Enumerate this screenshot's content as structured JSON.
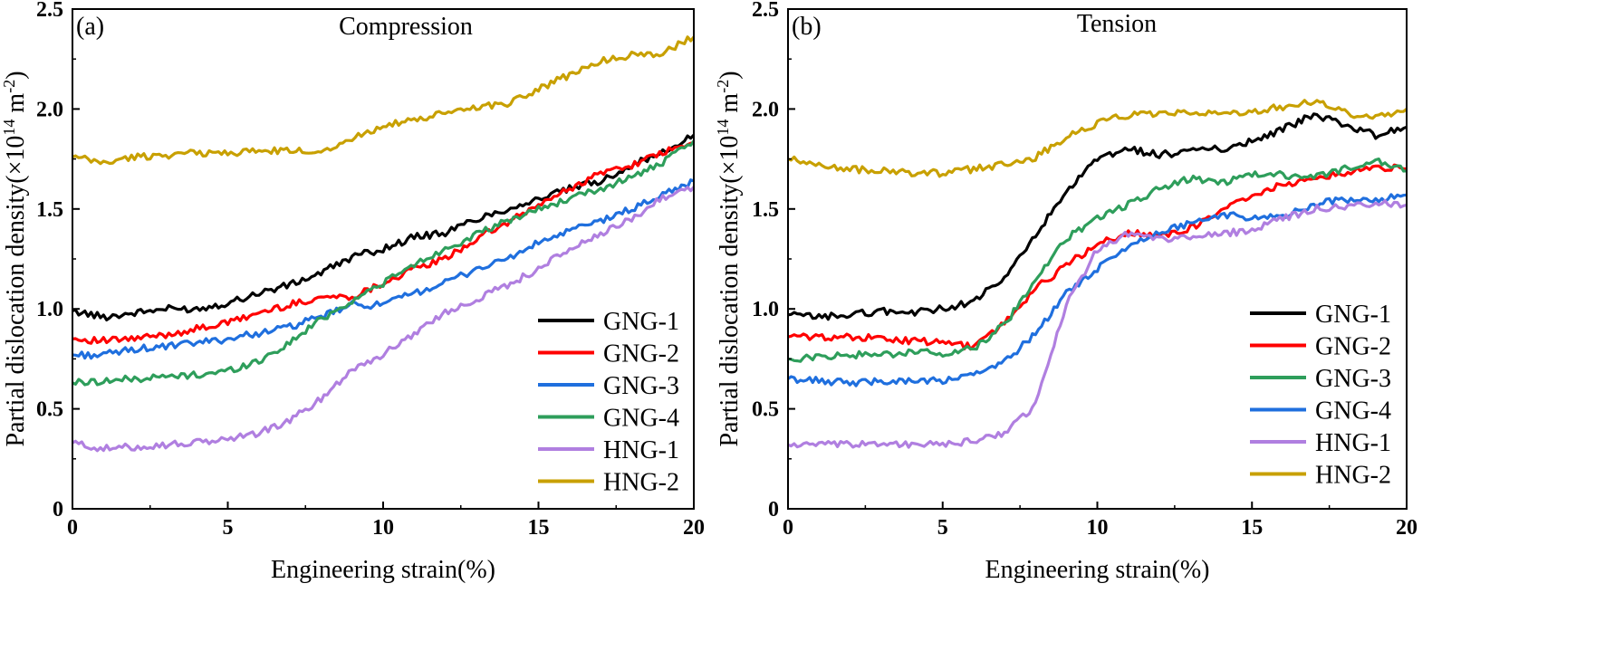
{
  "figure": {
    "panels": [
      {
        "tag": "(a)",
        "title": "Compression"
      },
      {
        "tag": "(b)",
        "title": "Tension"
      }
    ]
  },
  "chart_data": [
    {
      "type": "line",
      "title": "Compression",
      "panel_label": "(a)",
      "xlabel": "Engineering strain(%)",
      "ylabel_prefix": "Partial dislocation density(×10",
      "ylabel_exp1": "14",
      "ylabel_mid": " m",
      "ylabel_exp2": "-2",
      "ylabel_suffix": ")",
      "xlim": [
        0,
        20
      ],
      "ylim": [
        0,
        2.5
      ],
      "xticks": [
        "0",
        "5",
        "10",
        "15",
        "20"
      ],
      "yticks": [
        "0",
        "0.5",
        "1.0",
        "1.5",
        "2.0",
        "2.5"
      ],
      "legend_position": "lower-right",
      "series": [
        {
          "name": "GNG-1",
          "color": "#000000",
          "points": [
            [
              0,
              0.99
            ],
            [
              1,
              0.96
            ],
            [
              2,
              0.98
            ],
            [
              3,
              1.0
            ],
            [
              4,
              1.0
            ],
            [
              5,
              1.03
            ],
            [
              6,
              1.08
            ],
            [
              7,
              1.12
            ],
            [
              8,
              1.18
            ],
            [
              9,
              1.26
            ],
            [
              10,
              1.3
            ],
            [
              11,
              1.36
            ],
            [
              12,
              1.38
            ],
            [
              13,
              1.45
            ],
            [
              14,
              1.5
            ],
            [
              15,
              1.55
            ],
            [
              16,
              1.6
            ],
            [
              17,
              1.64
            ],
            [
              18,
              1.72
            ],
            [
              19,
              1.78
            ],
            [
              20,
              1.87
            ]
          ]
        },
        {
          "name": "GNG-2",
          "color": "#ff0000",
          "points": [
            [
              0,
              0.85
            ],
            [
              1,
              0.84
            ],
            [
              2,
              0.85
            ],
            [
              3,
              0.87
            ],
            [
              4,
              0.9
            ],
            [
              5,
              0.93
            ],
            [
              6,
              0.98
            ],
            [
              7,
              1.02
            ],
            [
              8,
              1.06
            ],
            [
              9,
              1.06
            ],
            [
              10,
              1.13
            ],
            [
              11,
              1.2
            ],
            [
              12,
              1.25
            ],
            [
              13,
              1.35
            ],
            [
              14,
              1.43
            ],
            [
              15,
              1.52
            ],
            [
              16,
              1.6
            ],
            [
              17,
              1.68
            ],
            [
              18,
              1.72
            ],
            [
              19,
              1.78
            ],
            [
              20,
              1.83
            ]
          ]
        },
        {
          "name": "GNG-3",
          "color": "#1f6fde",
          "points": [
            [
              0,
              0.77
            ],
            [
              1,
              0.77
            ],
            [
              2,
              0.8
            ],
            [
              3,
              0.81
            ],
            [
              4,
              0.83
            ],
            [
              5,
              0.85
            ],
            [
              6,
              0.88
            ],
            [
              7,
              0.91
            ],
            [
              8,
              0.96
            ],
            [
              9,
              1.02
            ],
            [
              10,
              1.02
            ],
            [
              11,
              1.08
            ],
            [
              12,
              1.13
            ],
            [
              13,
              1.2
            ],
            [
              14,
              1.25
            ],
            [
              15,
              1.33
            ],
            [
              16,
              1.39
            ],
            [
              17,
              1.44
            ],
            [
              18,
              1.5
            ],
            [
              19,
              1.57
            ],
            [
              20,
              1.64
            ]
          ]
        },
        {
          "name": "GNG-4",
          "color": "#2e9e5b",
          "points": [
            [
              0,
              0.63
            ],
            [
              1,
              0.64
            ],
            [
              2,
              0.65
            ],
            [
              3,
              0.66
            ],
            [
              4,
              0.67
            ],
            [
              5,
              0.69
            ],
            [
              6,
              0.74
            ],
            [
              7,
              0.83
            ],
            [
              8,
              0.95
            ],
            [
              9,
              1.04
            ],
            [
              10,
              1.13
            ],
            [
              11,
              1.22
            ],
            [
              12,
              1.3
            ],
            [
              13,
              1.37
            ],
            [
              14,
              1.44
            ],
            [
              15,
              1.5
            ],
            [
              16,
              1.55
            ],
            [
              17,
              1.6
            ],
            [
              18,
              1.66
            ],
            [
              19,
              1.73
            ],
            [
              20,
              1.84
            ]
          ]
        },
        {
          "name": "HNG-1",
          "color": "#b07fe0",
          "points": [
            [
              0,
              0.33
            ],
            [
              1,
              0.3
            ],
            [
              2,
              0.31
            ],
            [
              3,
              0.32
            ],
            [
              4,
              0.33
            ],
            [
              5,
              0.35
            ],
            [
              6,
              0.38
            ],
            [
              7,
              0.44
            ],
            [
              8,
              0.55
            ],
            [
              9,
              0.7
            ],
            [
              10,
              0.77
            ],
            [
              11,
              0.88
            ],
            [
              12,
              0.98
            ],
            [
              13,
              1.05
            ],
            [
              14,
              1.12
            ],
            [
              15,
              1.2
            ],
            [
              16,
              1.3
            ],
            [
              17,
              1.37
            ],
            [
              18,
              1.45
            ],
            [
              19,
              1.56
            ],
            [
              20,
              1.61
            ]
          ]
        },
        {
          "name": "HNG-2",
          "color": "#c8a000",
          "points": [
            [
              0,
              1.76
            ],
            [
              1,
              1.73
            ],
            [
              2,
              1.76
            ],
            [
              3,
              1.77
            ],
            [
              4,
              1.78
            ],
            [
              5,
              1.78
            ],
            [
              6,
              1.79
            ],
            [
              7,
              1.79
            ],
            [
              8,
              1.79
            ],
            [
              9,
              1.85
            ],
            [
              10,
              1.92
            ],
            [
              11,
              1.94
            ],
            [
              12,
              1.98
            ],
            [
              13,
              2.01
            ],
            [
              14,
              2.03
            ],
            [
              15,
              2.1
            ],
            [
              16,
              2.17
            ],
            [
              17,
              2.24
            ],
            [
              18,
              2.27
            ],
            [
              19,
              2.28
            ],
            [
              20,
              2.36
            ]
          ]
        }
      ]
    },
    {
      "type": "line",
      "title": "Tension",
      "panel_label": "(b)",
      "xlabel": "Engineering strain(%)",
      "ylabel_prefix": "Partial dislocation density(×10",
      "ylabel_exp1": "14",
      "ylabel_mid": " m",
      "ylabel_exp2": "-2",
      "ylabel_suffix": ")",
      "xlim": [
        0,
        20
      ],
      "ylim": [
        0,
        2.5
      ],
      "xticks": [
        "0",
        "5",
        "10",
        "15",
        "20"
      ],
      "yticks": [
        "0",
        "0.5",
        "1.0",
        "1.5",
        "2.0",
        "2.5"
      ],
      "legend_position": "lower-right",
      "series": [
        {
          "name": "GNG-1",
          "color": "#000000",
          "points": [
            [
              0,
              0.97
            ],
            [
              1,
              0.96
            ],
            [
              2,
              0.97
            ],
            [
              3,
              0.99
            ],
            [
              4,
              0.98
            ],
            [
              5,
              1.0
            ],
            [
              6,
              1.04
            ],
            [
              7,
              1.15
            ],
            [
              8,
              1.37
            ],
            [
              9,
              1.58
            ],
            [
              10,
              1.75
            ],
            [
              11,
              1.8
            ],
            [
              12,
              1.77
            ],
            [
              13,
              1.79
            ],
            [
              14,
              1.8
            ],
            [
              15,
              1.84
            ],
            [
              16,
              1.9
            ],
            [
              17,
              1.97
            ],
            [
              18,
              1.92
            ],
            [
              19,
              1.87
            ],
            [
              20,
              1.91
            ]
          ]
        },
        {
          "name": "GNG-2",
          "color": "#ff0000",
          "points": [
            [
              0,
              0.86
            ],
            [
              1,
              0.86
            ],
            [
              2,
              0.86
            ],
            [
              3,
              0.85
            ],
            [
              4,
              0.84
            ],
            [
              5,
              0.83
            ],
            [
              6,
              0.81
            ],
            [
              7,
              0.93
            ],
            [
              8,
              1.1
            ],
            [
              9,
              1.22
            ],
            [
              10,
              1.32
            ],
            [
              11,
              1.38
            ],
            [
              12,
              1.37
            ],
            [
              13,
              1.4
            ],
            [
              14,
              1.5
            ],
            [
              15,
              1.57
            ],
            [
              16,
              1.62
            ],
            [
              17,
              1.66
            ],
            [
              18,
              1.68
            ],
            [
              19,
              1.71
            ],
            [
              20,
              1.7
            ]
          ]
        },
        {
          "name": "GNG-3",
          "color": "#2e9e5b",
          "points": [
            [
              0,
              0.75
            ],
            [
              1,
              0.76
            ],
            [
              2,
              0.77
            ],
            [
              3,
              0.77
            ],
            [
              4,
              0.78
            ],
            [
              5,
              0.78
            ],
            [
              6,
              0.8
            ],
            [
              7,
              0.92
            ],
            [
              8,
              1.14
            ],
            [
              9,
              1.35
            ],
            [
              10,
              1.46
            ],
            [
              11,
              1.52
            ],
            [
              12,
              1.6
            ],
            [
              13,
              1.65
            ],
            [
              14,
              1.63
            ],
            [
              15,
              1.67
            ],
            [
              16,
              1.67
            ],
            [
              17,
              1.66
            ],
            [
              18,
              1.7
            ],
            [
              19,
              1.74
            ],
            [
              20,
              1.69
            ]
          ]
        },
        {
          "name": "GNG-4",
          "color": "#1f6fde",
          "points": [
            [
              0,
              0.65
            ],
            [
              1,
              0.64
            ],
            [
              2,
              0.63
            ],
            [
              3,
              0.64
            ],
            [
              4,
              0.64
            ],
            [
              5,
              0.64
            ],
            [
              6,
              0.67
            ],
            [
              7,
              0.73
            ],
            [
              8,
              0.88
            ],
            [
              9,
              1.08
            ],
            [
              10,
              1.2
            ],
            [
              11,
              1.32
            ],
            [
              12,
              1.38
            ],
            [
              13,
              1.43
            ],
            [
              14,
              1.47
            ],
            [
              15,
              1.46
            ],
            [
              16,
              1.46
            ],
            [
              17,
              1.52
            ],
            [
              18,
              1.55
            ],
            [
              19,
              1.54
            ],
            [
              20,
              1.57
            ]
          ]
        },
        {
          "name": "HNG-1",
          "color": "#b07fe0",
          "points": [
            [
              0,
              0.32
            ],
            [
              1,
              0.32
            ],
            [
              2,
              0.32
            ],
            [
              3,
              0.33
            ],
            [
              4,
              0.32
            ],
            [
              5,
              0.32
            ],
            [
              6,
              0.34
            ],
            [
              7,
              0.38
            ],
            [
              8,
              0.52
            ],
            [
              9,
              1.02
            ],
            [
              10,
              1.3
            ],
            [
              11,
              1.38
            ],
            [
              12,
              1.35
            ],
            [
              13,
              1.36
            ],
            [
              14,
              1.37
            ],
            [
              15,
              1.4
            ],
            [
              16,
              1.45
            ],
            [
              17,
              1.5
            ],
            [
              18,
              1.51
            ],
            [
              19,
              1.53
            ],
            [
              20,
              1.52
            ]
          ]
        },
        {
          "name": "HNG-2",
          "color": "#c8a000",
          "points": [
            [
              0,
              1.75
            ],
            [
              1,
              1.72
            ],
            [
              2,
              1.7
            ],
            [
              3,
              1.69
            ],
            [
              4,
              1.68
            ],
            [
              5,
              1.68
            ],
            [
              6,
              1.7
            ],
            [
              7,
              1.72
            ],
            [
              8,
              1.76
            ],
            [
              9,
              1.86
            ],
            [
              10,
              1.93
            ],
            [
              11,
              1.97
            ],
            [
              12,
              1.97
            ],
            [
              13,
              1.98
            ],
            [
              14,
              1.98
            ],
            [
              15,
              1.99
            ],
            [
              16,
              2.01
            ],
            [
              17,
              2.04
            ],
            [
              18,
              1.98
            ],
            [
              19,
              1.96
            ],
            [
              20,
              2.0
            ]
          ]
        }
      ]
    }
  ]
}
